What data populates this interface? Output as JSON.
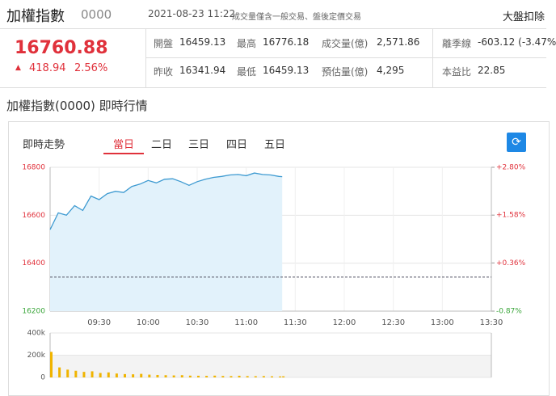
{
  "header": {
    "title": "加權指數",
    "code": "0000",
    "time": "2021-08-23 11:22",
    "note": "成交量僅含一般交易、盤後定價交易",
    "link": "大盤扣除"
  },
  "quote": {
    "price": "16760.88",
    "change": "418.94",
    "change_percent": "2.56%"
  },
  "stats": [
    {
      "label": "開盤",
      "value": "16459.13"
    },
    {
      "label": "最高",
      "value": "16776.18"
    },
    {
      "label": "成交量(億)",
      "value": "2,571.86"
    },
    {
      "label": "離季線",
      "value": "-603.12 (-3.47%"
    },
    {
      "label": "昨收",
      "value": "16341.94"
    },
    {
      "label": "最低",
      "value": "16459.13"
    },
    {
      "label": "預估量(億)",
      "value": "4,295"
    },
    {
      "label": "本益比",
      "value": "22.85"
    }
  ],
  "section_title": "加權指數(0000) 即時行情",
  "panel": {
    "title": "即時走勢",
    "tabs": [
      "當日",
      "二日",
      "三日",
      "四日",
      "五日"
    ],
    "active_tab": 0
  },
  "chart_data": [
    {
      "type": "line",
      "x": [
        540,
        545,
        550,
        555,
        560,
        565,
        570,
        575,
        580,
        585,
        590,
        595,
        600,
        605,
        610,
        615,
        620,
        625,
        630,
        635,
        640,
        645,
        650,
        655,
        660,
        665,
        670,
        675,
        680,
        682
      ],
      "values": [
        16540,
        16610,
        16600,
        16640,
        16620,
        16680,
        16665,
        16690,
        16700,
        16695,
        16720,
        16730,
        16745,
        16735,
        16750,
        16752,
        16740,
        16725,
        16740,
        16750,
        16758,
        16762,
        16768,
        16770,
        16765,
        16776,
        16770,
        16768,
        16762,
        16760.88
      ],
      "color": "#3d9ad1",
      "fill_color": "#e2f2fb",
      "reference": 16341.94,
      "up_color": "#e0313b",
      "down_color": "#3aa53a",
      "xlim": [
        540,
        810
      ],
      "xticks": [
        {
          "value": 570,
          "label": "09:30"
        },
        {
          "value": 600,
          "label": "10:00"
        },
        {
          "value": 630,
          "label": "10:30"
        },
        {
          "value": 660,
          "label": "11:00"
        },
        {
          "value": 690,
          "label": "11:30"
        },
        {
          "value": 720,
          "label": "12:00"
        },
        {
          "value": 750,
          "label": "12:30"
        },
        {
          "value": 780,
          "label": "13:00"
        },
        {
          "value": 810,
          "label": "13:30"
        }
      ],
      "ylim": [
        16200,
        16800
      ],
      "yticks": [
        16200,
        16400,
        16600,
        16800
      ],
      "y2lim": [
        -0.87,
        2.8
      ],
      "y2ticks": [
        {
          "value": -0.87,
          "label": "-0.87%"
        },
        {
          "value": 0.36,
          "label": "+0.36%"
        },
        {
          "value": 1.58,
          "label": "+1.58%"
        },
        {
          "value": 2.8,
          "label": "+2.80%"
        }
      ],
      "grid": true
    },
    {
      "type": "bar",
      "x": [
        540,
        545,
        550,
        555,
        560,
        565,
        570,
        575,
        580,
        585,
        590,
        595,
        600,
        605,
        610,
        615,
        620,
        625,
        630,
        635,
        640,
        645,
        650,
        655,
        660,
        665,
        670,
        675,
        680,
        682
      ],
      "values": [
        230000,
        90000,
        70000,
        60000,
        50000,
        55000,
        40000,
        45000,
        35000,
        30000,
        28000,
        32000,
        25000,
        22000,
        20000,
        18000,
        20000,
        16000,
        15000,
        14000,
        16000,
        13000,
        12000,
        15000,
        12000,
        11000,
        12000,
        10000,
        9000,
        10000
      ],
      "color": "#f0b400",
      "xlim": [
        540,
        810
      ],
      "ylim": [
        0,
        400000
      ],
      "yticks": [
        0,
        {
          "value": 200000,
          "label": "200k"
        },
        {
          "value": 400000,
          "label": "400k"
        }
      ],
      "grid": true
    }
  ]
}
